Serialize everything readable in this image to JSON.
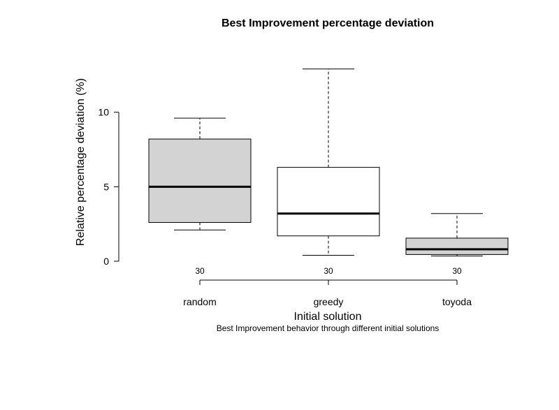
{
  "chart_data": {
    "type": "boxplot",
    "title": "Best Improvement percentage deviation",
    "xlabel": "Initial solution",
    "ylabel": "Relative percentage deviation (%)",
    "caption": "Best Improvement behavior through different initial solutions",
    "ylim": [
      0,
      13
    ],
    "yticks": [
      "0",
      "5",
      "10"
    ],
    "grid": false,
    "categories": [
      "random",
      "greedy",
      "toyoda"
    ],
    "counts": [
      "30",
      "30",
      "30"
    ],
    "boxes": [
      {
        "category": "random",
        "whisker_low": 2.1,
        "q1": 2.6,
        "median": 5.0,
        "q3": 8.2,
        "whisker_high": 9.6,
        "fill": "#d3d3d3"
      },
      {
        "category": "greedy",
        "whisker_low": 0.4,
        "q1": 1.7,
        "median": 3.2,
        "q3": 6.3,
        "whisker_high": 12.9,
        "fill": "#ffffff"
      },
      {
        "category": "toyoda",
        "whisker_low": 0.35,
        "q1": 0.45,
        "median": 0.8,
        "q3": 1.55,
        "whisker_high": 3.2,
        "fill": "#d3d3d3"
      }
    ]
  }
}
